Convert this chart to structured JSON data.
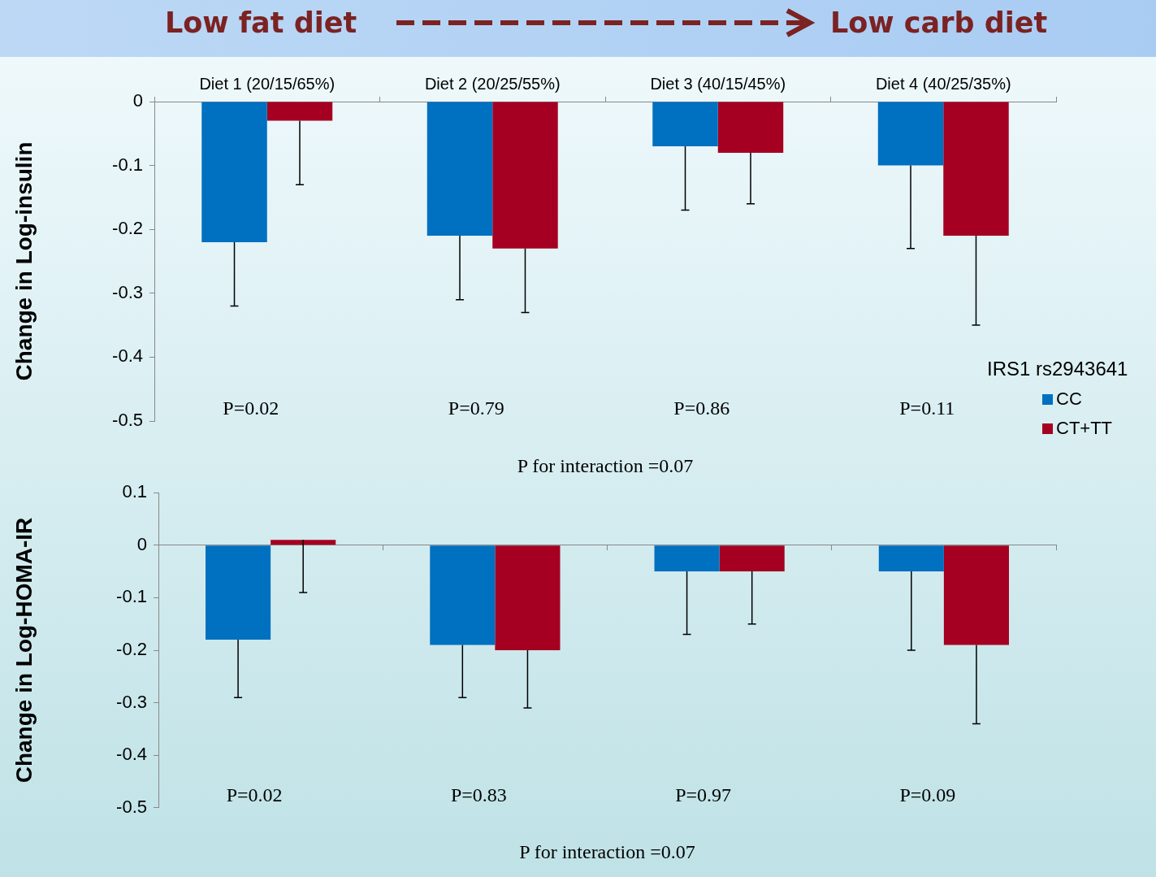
{
  "chart_data": [
    {
      "type": "bar",
      "title": "Low fat diet",
      "subtitle": "Low carb diet",
      "ylabel": "Change in Log-insulin",
      "legend_title": "IRS1 rs2943641",
      "legend": "right",
      "categories": [
        "Diet 1 (20/15/65%)",
        "Diet 2 (20/25/55%)",
        "Diet 3 (40/15/45%)",
        "Diet 4 (40/25/35%)"
      ],
      "series": [
        {
          "name": "CC",
          "color": "#0070c0",
          "values": [
            -0.22,
            -0.21,
            -0.07,
            -0.1
          ],
          "errors": [
            [
              -0.32,
              -0.22
            ],
            [
              -0.31,
              -0.21
            ],
            [
              -0.17,
              -0.07
            ],
            [
              -0.23,
              -0.1
            ]
          ]
        },
        {
          "name": "CT+TT",
          "color": "#a50021",
          "values": [
            -0.03,
            -0.23,
            -0.08,
            -0.21
          ],
          "errors": [
            [
              -0.13,
              -0.03
            ],
            [
              -0.33,
              -0.23
            ],
            [
              -0.16,
              -0.08
            ],
            [
              -0.35,
              -0.21
            ]
          ]
        }
      ],
      "ylim": [
        -0.5,
        0
      ],
      "yticks": [
        0,
        -0.1,
        -0.2,
        -0.3,
        -0.4,
        -0.5
      ],
      "annotations": [
        "P=0.02",
        "P=0.79",
        "P=0.86",
        "P=0.11",
        "P for interaction =0.07"
      ]
    },
    {
      "type": "bar",
      "ylabel": "Change in Log-HOMA-IR",
      "categories": [
        null,
        null,
        null,
        null
      ],
      "series": [
        {
          "color": "#0070c0",
          "values": [
            -0.18,
            -0.19,
            -0.05,
            -0.05
          ],
          "errors": [
            [
              -0.29,
              -0.18
            ],
            [
              -0.29,
              -0.19
            ],
            [
              -0.17,
              -0.05
            ],
            [
              -0.2,
              -0.05
            ]
          ]
        },
        {
          "color": "#a50021",
          "values": [
            0.01,
            -0.2,
            -0.05,
            -0.19
          ],
          "errors": [
            [
              -0.09,
              0.01
            ],
            [
              -0.31,
              -0.2
            ],
            [
              -0.15,
              -0.05
            ],
            [
              -0.34,
              -0.19
            ]
          ]
        }
      ],
      "ylim": [
        -0.5,
        0.1
      ],
      "yticks": [
        0.1,
        0,
        -0.1,
        -0.2,
        -0.3,
        -0.4,
        -0.5
      ],
      "annotations": [
        "P=0.02",
        "P=0.83",
        "P=0.97",
        "P=0.09",
        "P for interaction =0.07"
      ]
    }
  ]
}
